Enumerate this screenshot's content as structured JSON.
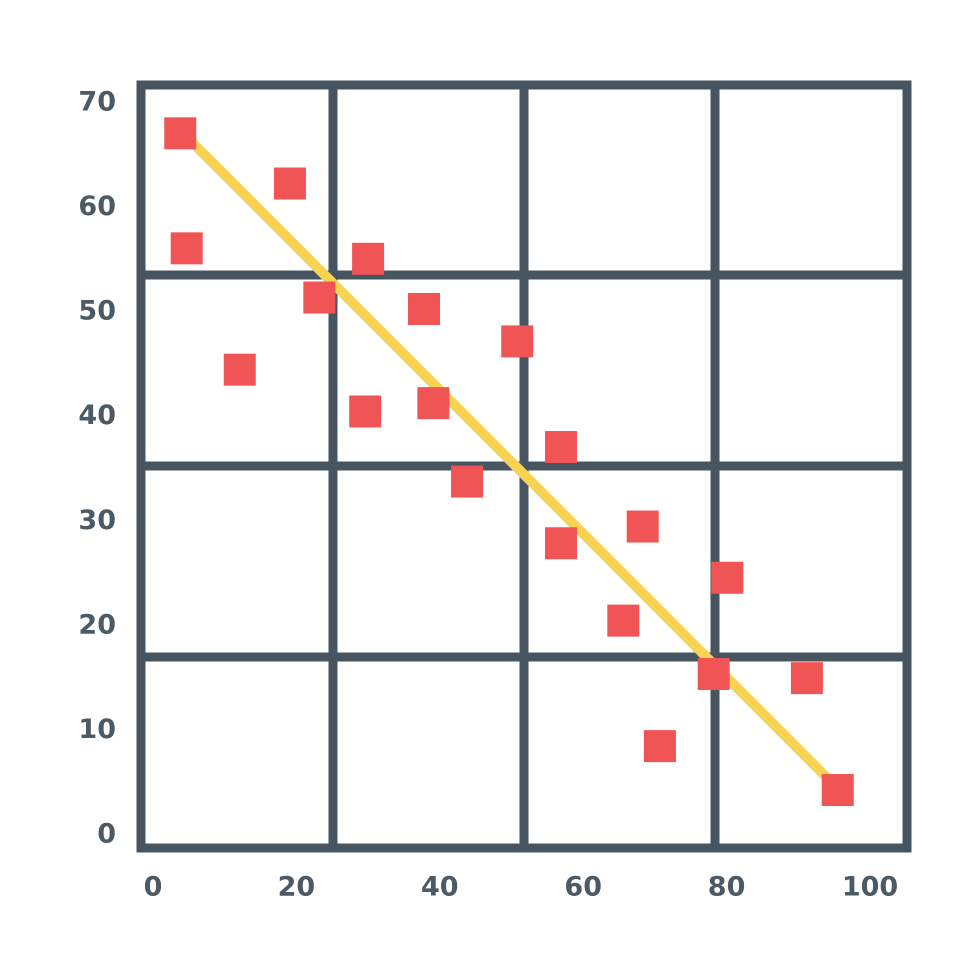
{
  "chart_data": {
    "type": "scatter",
    "xlim": [
      0,
      100
    ],
    "ylim": [
      0,
      70
    ],
    "xticks": [
      0,
      20,
      40,
      60,
      80,
      100
    ],
    "yticks": [
      0,
      10,
      20,
      30,
      40,
      50,
      60,
      70
    ],
    "series": [
      {
        "color": "#f05454",
        "x": [
          3.8,
          4.7,
          19.1,
          12.1,
          23.2,
          30,
          29.6,
          37.8,
          39.1,
          43.8,
          50.8,
          56.9,
          56.9,
          68.3,
          65.6,
          80.1,
          78.2,
          91.2,
          70.7,
          95.5
        ],
        "values": [
          67.1,
          56.1,
          62.3,
          44.5,
          51.4,
          55.1,
          40.5,
          50.3,
          41.3,
          33.8,
          47.2,
          37.1,
          27.9,
          29.5,
          20.5,
          24.6,
          15.4,
          15.0,
          8.5,
          4.3
        ]
      }
    ],
    "trend_line": {
      "color": "#f7d354",
      "x": [
        4.5,
        94.4
      ],
      "values": [
        66.9,
        5.2
      ]
    }
  }
}
